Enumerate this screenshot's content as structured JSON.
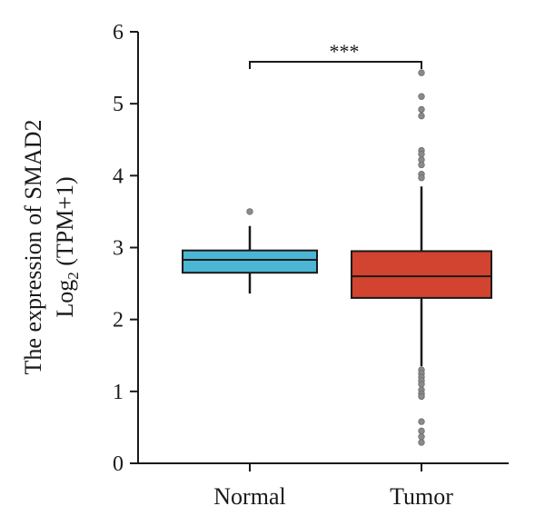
{
  "chart_data": {
    "type": "box",
    "title": "",
    "xlabel": "",
    "ylabel_line1": "The expression of SMAD2",
    "ylabel_line2_prefix": "Log",
    "ylabel_line2_sub": "2",
    "ylabel_line2_suffix": " (TPM+1)",
    "ylim": [
      0,
      6
    ],
    "yticks": [
      {
        "value": 0,
        "label": "0"
      },
      {
        "value": 1,
        "label": "1"
      },
      {
        "value": 2,
        "label": "2"
      },
      {
        "value": 3,
        "label": "3"
      },
      {
        "value": 4,
        "label": "4"
      },
      {
        "value": 5,
        "label": "5"
      },
      {
        "value": 6,
        "label": "6"
      }
    ],
    "grid": false,
    "significance": "***",
    "groups": [
      {
        "category": "Normal",
        "color": "#4bb6d4",
        "whisker_low": 2.36,
        "q1": 2.65,
        "median": 2.83,
        "q3": 2.96,
        "whisker_high": 3.3,
        "outliers": [
          3.5
        ]
      },
      {
        "category": "Tumor",
        "color": "#d2442f",
        "whisker_low": 1.35,
        "q1": 2.3,
        "median": 2.6,
        "q3": 2.95,
        "whisker_high": 3.85,
        "outliers": [
          5.43,
          5.1,
          4.92,
          4.83,
          4.35,
          4.3,
          4.22,
          4.15,
          4.02,
          3.97,
          1.3,
          1.25,
          1.2,
          1.15,
          1.1,
          1.02,
          0.97,
          0.93,
          0.58,
          0.45,
          0.37,
          0.29
        ]
      }
    ]
  },
  "colors": {
    "axis": "#1a1a1a",
    "outlier": "#8a8a8a"
  }
}
